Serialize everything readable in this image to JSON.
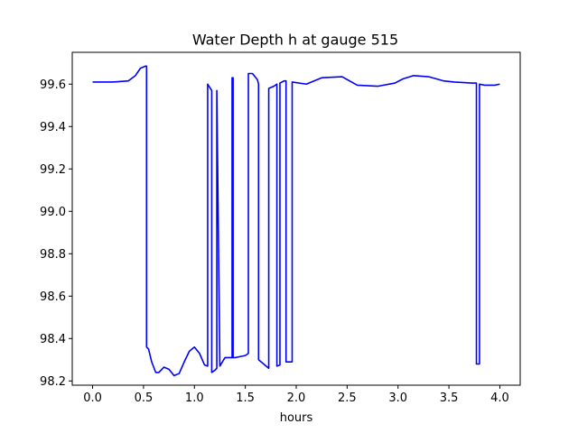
{
  "chart_data": {
    "type": "line",
    "title": "Water Depth h at gauge 515",
    "xlabel": "hours",
    "ylabel": "",
    "xlim": [
      -0.2,
      4.2
    ],
    "ylim": [
      98.18,
      99.75
    ],
    "x_ticks": [
      0.0,
      0.5,
      1.0,
      1.5,
      2.0,
      2.5,
      3.0,
      3.5,
      4.0
    ],
    "x_tick_labels": [
      "0.0",
      "0.5",
      "1.0",
      "1.5",
      "2.0",
      "2.5",
      "3.0",
      "3.5",
      "4.0"
    ],
    "y_ticks": [
      98.2,
      98.4,
      98.6,
      98.8,
      99.0,
      99.2,
      99.4,
      99.6
    ],
    "y_tick_labels": [
      "98.2",
      "98.4",
      "98.6",
      "98.8",
      "99.0",
      "99.2",
      "99.4",
      "99.6"
    ],
    "grid": false,
    "series": [
      {
        "color": "#0000ff",
        "x": [
          0.0,
          0.2,
          0.35,
          0.42,
          0.47,
          0.52,
          0.53,
          0.53,
          0.55,
          0.58,
          0.62,
          0.65,
          0.7,
          0.75,
          0.8,
          0.85,
          0.9,
          0.95,
          1.0,
          1.05,
          1.1,
          1.13,
          1.13,
          1.17,
          1.17,
          1.2,
          1.22,
          1.22,
          1.25,
          1.3,
          1.37,
          1.37,
          1.38,
          1.38,
          1.4,
          1.45,
          1.5,
          1.53,
          1.53,
          1.57,
          1.62,
          1.63,
          1.63,
          1.68,
          1.73,
          1.73,
          1.78,
          1.81,
          1.81,
          1.84,
          1.84,
          1.88,
          1.9,
          1.9,
          1.96,
          1.96,
          2.1,
          2.25,
          2.45,
          2.6,
          2.8,
          2.97,
          3.05,
          3.15,
          3.3,
          3.45,
          3.55,
          3.72,
          3.77,
          3.77,
          3.8,
          3.8,
          3.85,
          3.95,
          4.0
        ],
        "y": [
          99.61,
          99.61,
          99.615,
          99.64,
          99.675,
          99.685,
          99.685,
          98.36,
          98.35,
          98.29,
          98.24,
          98.24,
          98.265,
          98.255,
          98.225,
          98.235,
          98.29,
          98.34,
          98.36,
          98.33,
          98.275,
          98.27,
          99.6,
          99.57,
          98.24,
          98.25,
          98.26,
          99.57,
          98.27,
          98.31,
          98.31,
          99.63,
          99.63,
          98.31,
          98.31,
          98.315,
          98.32,
          98.33,
          99.65,
          99.65,
          99.62,
          99.6,
          98.3,
          98.28,
          98.26,
          99.58,
          99.59,
          99.6,
          98.27,
          98.275,
          99.605,
          99.615,
          99.615,
          98.29,
          98.29,
          99.61,
          99.6,
          99.63,
          99.635,
          99.595,
          99.59,
          99.605,
          99.625,
          99.64,
          99.635,
          99.615,
          99.61,
          99.605,
          99.605,
          98.28,
          98.28,
          99.6,
          99.595,
          99.595,
          99.6
        ]
      }
    ]
  }
}
